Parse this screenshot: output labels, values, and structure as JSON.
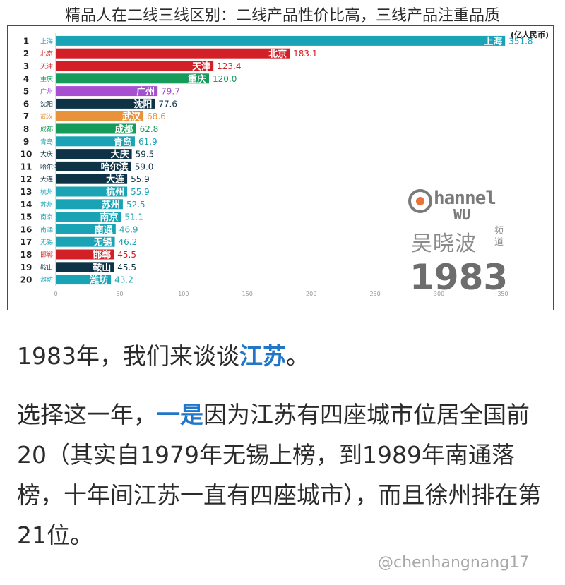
{
  "page_title": "精品人在二线三线区别：二线产品性价比高，三线产品注重品质",
  "chart_data": {
    "type": "bar",
    "unit_label": "(亿人民币)",
    "ranks": [
      1,
      2,
      3,
      4,
      5,
      6,
      7,
      8,
      9,
      10,
      11,
      12,
      13,
      14,
      15,
      16,
      17,
      18,
      19,
      20
    ],
    "categories": [
      "上海",
      "北京",
      "天津",
      "重庆",
      "广州",
      "沈阳",
      "武汉",
      "成都",
      "青岛",
      "大庆",
      "哈尔滨",
      "大连",
      "杭州",
      "苏州",
      "南京",
      "南通",
      "无锡",
      "邯郸",
      "鞍山",
      "潍坊"
    ],
    "values": [
      351.8,
      183.1,
      123.4,
      120.0,
      79.7,
      77.6,
      68.6,
      62.8,
      61.9,
      59.5,
      59.0,
      55.9,
      55.9,
      52.5,
      51.1,
      46.9,
      46.2,
      45.5,
      45.5,
      43.2
    ],
    "value_labels": [
      "351.8",
      "183.1",
      "123.4",
      "120.0",
      "79.7",
      "77.6",
      "68.6",
      "62.8",
      "61.9",
      "59.5",
      "59.0",
      "55.9",
      "55.9",
      "52.5",
      "51.1",
      "46.9",
      "46.2",
      "45.5",
      "45.5",
      "43.2"
    ],
    "colors": [
      "#1aa3b5",
      "#d32027",
      "#d32027",
      "#169b5a",
      "#a64fd1",
      "#0e3347",
      "#e8923b",
      "#169b5a",
      "#1aa3b5",
      "#0e3347",
      "#0e3347",
      "#0e3347",
      "#1aa3b5",
      "#1aa3b5",
      "#1aa3b5",
      "#1aa3b5",
      "#1aa3b5",
      "#d32027",
      "#0e3347",
      "#1aa3b5"
    ],
    "x_ticks": [
      0,
      50,
      100,
      150,
      200,
      250,
      300,
      350
    ],
    "xlim": [
      0,
      355
    ]
  },
  "brand": {
    "word_top": "hannel",
    "word_bottom": "WU",
    "name": "吴晓波",
    "sub": "频道",
    "year": "1983"
  },
  "article": {
    "p1_text": "1983年，我们来谈谈",
    "p1_highlight": "江苏",
    "p1_end": "。",
    "p2_pre": "选择这一年，",
    "p2_highlight": "一是",
    "p2_text": "因为江苏有四座城市位居全国前20（其实自1979年无锡上榜，到1989年南通落榜，十年间江苏一直有四座城市），而且徐州排在第21位。"
  },
  "watermark": "@chenhangnang17"
}
